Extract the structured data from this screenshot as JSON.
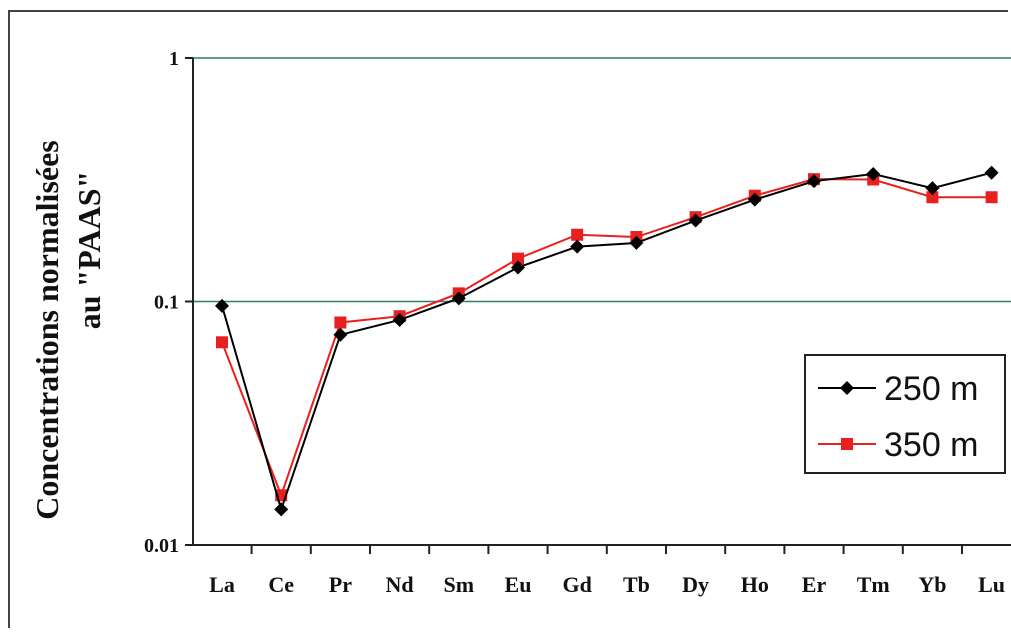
{
  "chart_data": {
    "type": "line",
    "y_scale": "log",
    "ylim": [
      0.01,
      1
    ],
    "ylabel_line1": "Concentrations normalisées",
    "ylabel_line2": "au \"PAAS\"",
    "yticks": [
      "0.01",
      "0.1",
      "1"
    ],
    "categories": [
      "La",
      "Ce",
      "Pr",
      "Nd",
      "Sm",
      "Eu",
      "Gd",
      "Tb",
      "Dy",
      "Ho",
      "Er",
      "Tm",
      "Yb",
      "Lu"
    ],
    "series": [
      {
        "name": "250 m",
        "color": "#000000",
        "marker": "diamond",
        "values": [
          0.096,
          0.014,
          0.073,
          0.084,
          0.103,
          0.138,
          0.168,
          0.174,
          0.215,
          0.262,
          0.312,
          0.334,
          0.292,
          0.338
        ]
      },
      {
        "name": "350 m",
        "color": "#e8201f",
        "marker": "square",
        "values": [
          0.068,
          0.016,
          0.082,
          0.087,
          0.108,
          0.15,
          0.188,
          0.184,
          0.222,
          0.272,
          0.318,
          0.317,
          0.268,
          0.268
        ]
      }
    ],
    "grid": true,
    "legend_position": "right"
  }
}
